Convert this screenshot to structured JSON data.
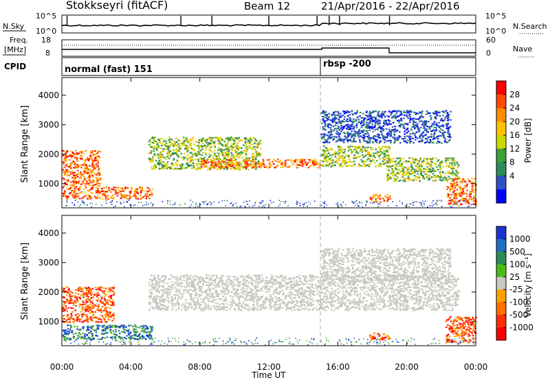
{
  "header": {
    "station": "Stokkseyri (fitACF)",
    "beam": "Beam 12",
    "date_range": "21/Apr/2016 - 22/Apr/2016"
  },
  "panels": {
    "nsky": {
      "left_label": "N.Sky",
      "ticks": [
        "10^5",
        "10^0"
      ],
      "right_label": "N.Search"
    },
    "freq": {
      "left_label_1": "Freq.",
      "left_label_2": "[MHz]",
      "ticks": [
        "18",
        "8"
      ],
      "right_ticks": [
        "60",
        "0"
      ],
      "right_label": "Nave"
    },
    "cpid": {
      "label": "CPID",
      "segments": [
        "normal (fast) 151",
        "rbsp -200"
      ],
      "switch_time_h": 15.0
    }
  },
  "power_colorbar": {
    "label": "Power [dB]",
    "ticks": [
      "28",
      "24",
      "20",
      "16",
      "12",
      "8",
      "4"
    ],
    "colors": [
      "#ff0000",
      "#ff4a00",
      "#ff8c00",
      "#ffc000",
      "#c8d800",
      "#3ca03c",
      "#2e8b57",
      "#3050c8",
      "#0000ff"
    ]
  },
  "velocity_colorbar": {
    "label": "Velocity [m s⁻¹]",
    "ticks": [
      "1000",
      "500",
      "100",
      "25",
      "-25",
      "-100",
      "-500",
      "-1000"
    ],
    "colors": [
      "#1e32d2",
      "#1e6ec8",
      "#2e8b57",
      "#4cbb17",
      "#c8c8c0",
      "#ffa000",
      "#ff7000",
      "#ff3000",
      "#ff0000"
    ]
  },
  "chart_data": {
    "type": "heatmap",
    "title": "Stokkseyri (fitACF)",
    "x": {
      "label": "Time UT",
      "range_h": [
        0,
        24
      ],
      "ticks": [
        "00:00",
        "04:00",
        "08:00",
        "12:00",
        "16:00",
        "20:00",
        "00:00"
      ]
    },
    "y": {
      "label": "Slant Range [km]",
      "range_km": [
        180,
        4600
      ],
      "ticks": [
        "1000",
        "2000",
        "3000",
        "4000"
      ]
    },
    "power_echo_regions": [
      {
        "t": [
          0.0,
          2.2
        ],
        "r": [
          900,
          2150
        ],
        "level": "high"
      },
      {
        "t": [
          0.0,
          5.2
        ],
        "r": [
          500,
          900
        ],
        "level": "high"
      },
      {
        "t": [
          5.0,
          11.5
        ],
        "r": [
          1500,
          2600
        ],
        "level": "medium"
      },
      {
        "t": [
          8.0,
          15.0
        ],
        "r": [
          1550,
          1850
        ],
        "level": "high"
      },
      {
        "t": [
          15.0,
          19.0
        ],
        "r": [
          1600,
          2300
        ],
        "level": "medium"
      },
      {
        "t": [
          15.0,
          22.5
        ],
        "r": [
          2400,
          3500
        ],
        "level": "low"
      },
      {
        "t": [
          18.8,
          23.0
        ],
        "r": [
          1100,
          1900
        ],
        "level": "medium"
      },
      {
        "t": [
          17.8,
          19.0
        ],
        "r": [
          400,
          650
        ],
        "level": "high"
      },
      {
        "t": [
          22.3,
          24.0
        ],
        "r": [
          300,
          1200
        ],
        "level": "high"
      }
    ],
    "velocity_echo_regions": [
      {
        "t": [
          0.0,
          3.0
        ],
        "r": [
          1000,
          2200
        ],
        "sign": "negative"
      },
      {
        "t": [
          0.0,
          5.2
        ],
        "r": [
          400,
          900
        ],
        "sign": "positive"
      },
      {
        "t": [
          5.0,
          23.0
        ],
        "r": [
          1400,
          2600
        ],
        "sign": "ground_scatter"
      },
      {
        "t": [
          15.0,
          22.5
        ],
        "r": [
          2400,
          3500
        ],
        "sign": "ground_scatter"
      },
      {
        "t": [
          17.8,
          19.0
        ],
        "r": [
          400,
          650
        ],
        "sign": "negative"
      },
      {
        "t": [
          22.2,
          24.0
        ],
        "r": [
          300,
          1200
        ],
        "sign": "negative"
      }
    ]
  }
}
